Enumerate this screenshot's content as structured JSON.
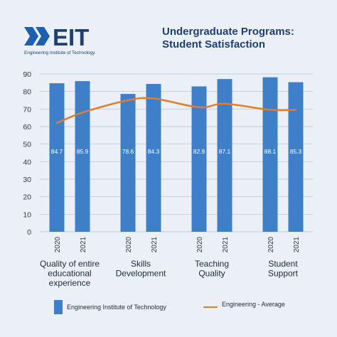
{
  "brand": {
    "logo_text": "EIT",
    "caption": "Engineering Institute of Technology."
  },
  "title_lines": [
    "Undergraduate Programs:",
    "Student Satisfaction"
  ],
  "colors": {
    "bar": "#3f7fc9",
    "line": "#e27d2c",
    "title": "#1d3f73",
    "axis_text": "#2b3a4c",
    "grid": "#aebfd3",
    "background": "#eaf0f6"
  },
  "chart_data": {
    "type": "bar",
    "groups": [
      {
        "label": [
          "Quality of entire",
          "educational",
          "experience"
        ],
        "years": [
          "2020",
          "2021"
        ],
        "values": [
          84.7,
          85.9
        ]
      },
      {
        "label": [
          "Skills",
          "Development"
        ],
        "years": [
          "2020",
          "2021"
        ],
        "values": [
          78.6,
          84.3
        ]
      },
      {
        "label": [
          "Teaching",
          "Quality"
        ],
        "years": [
          "2020",
          "2021"
        ],
        "values": [
          82.9,
          87.1
        ]
      },
      {
        "label": [
          "Student",
          "Support"
        ],
        "years": [
          "2020",
          "2021"
        ],
        "values": [
          88.1,
          85.3
        ]
      }
    ],
    "series": [
      {
        "name": "Engineering Institute of Technology",
        "type": "bar"
      },
      {
        "name": "Engineering - Average",
        "type": "line",
        "values": [
          [
            62,
            68
          ],
          [
            75,
            76
          ],
          [
            71,
            73
          ],
          [
            69.5,
            69.5
          ]
        ]
      }
    ],
    "ylim": [
      0,
      90
    ],
    "yticks": [
      0,
      10,
      20,
      30,
      40,
      50,
      60,
      70,
      80,
      90
    ],
    "grid": true,
    "legend_position": "bottom"
  }
}
